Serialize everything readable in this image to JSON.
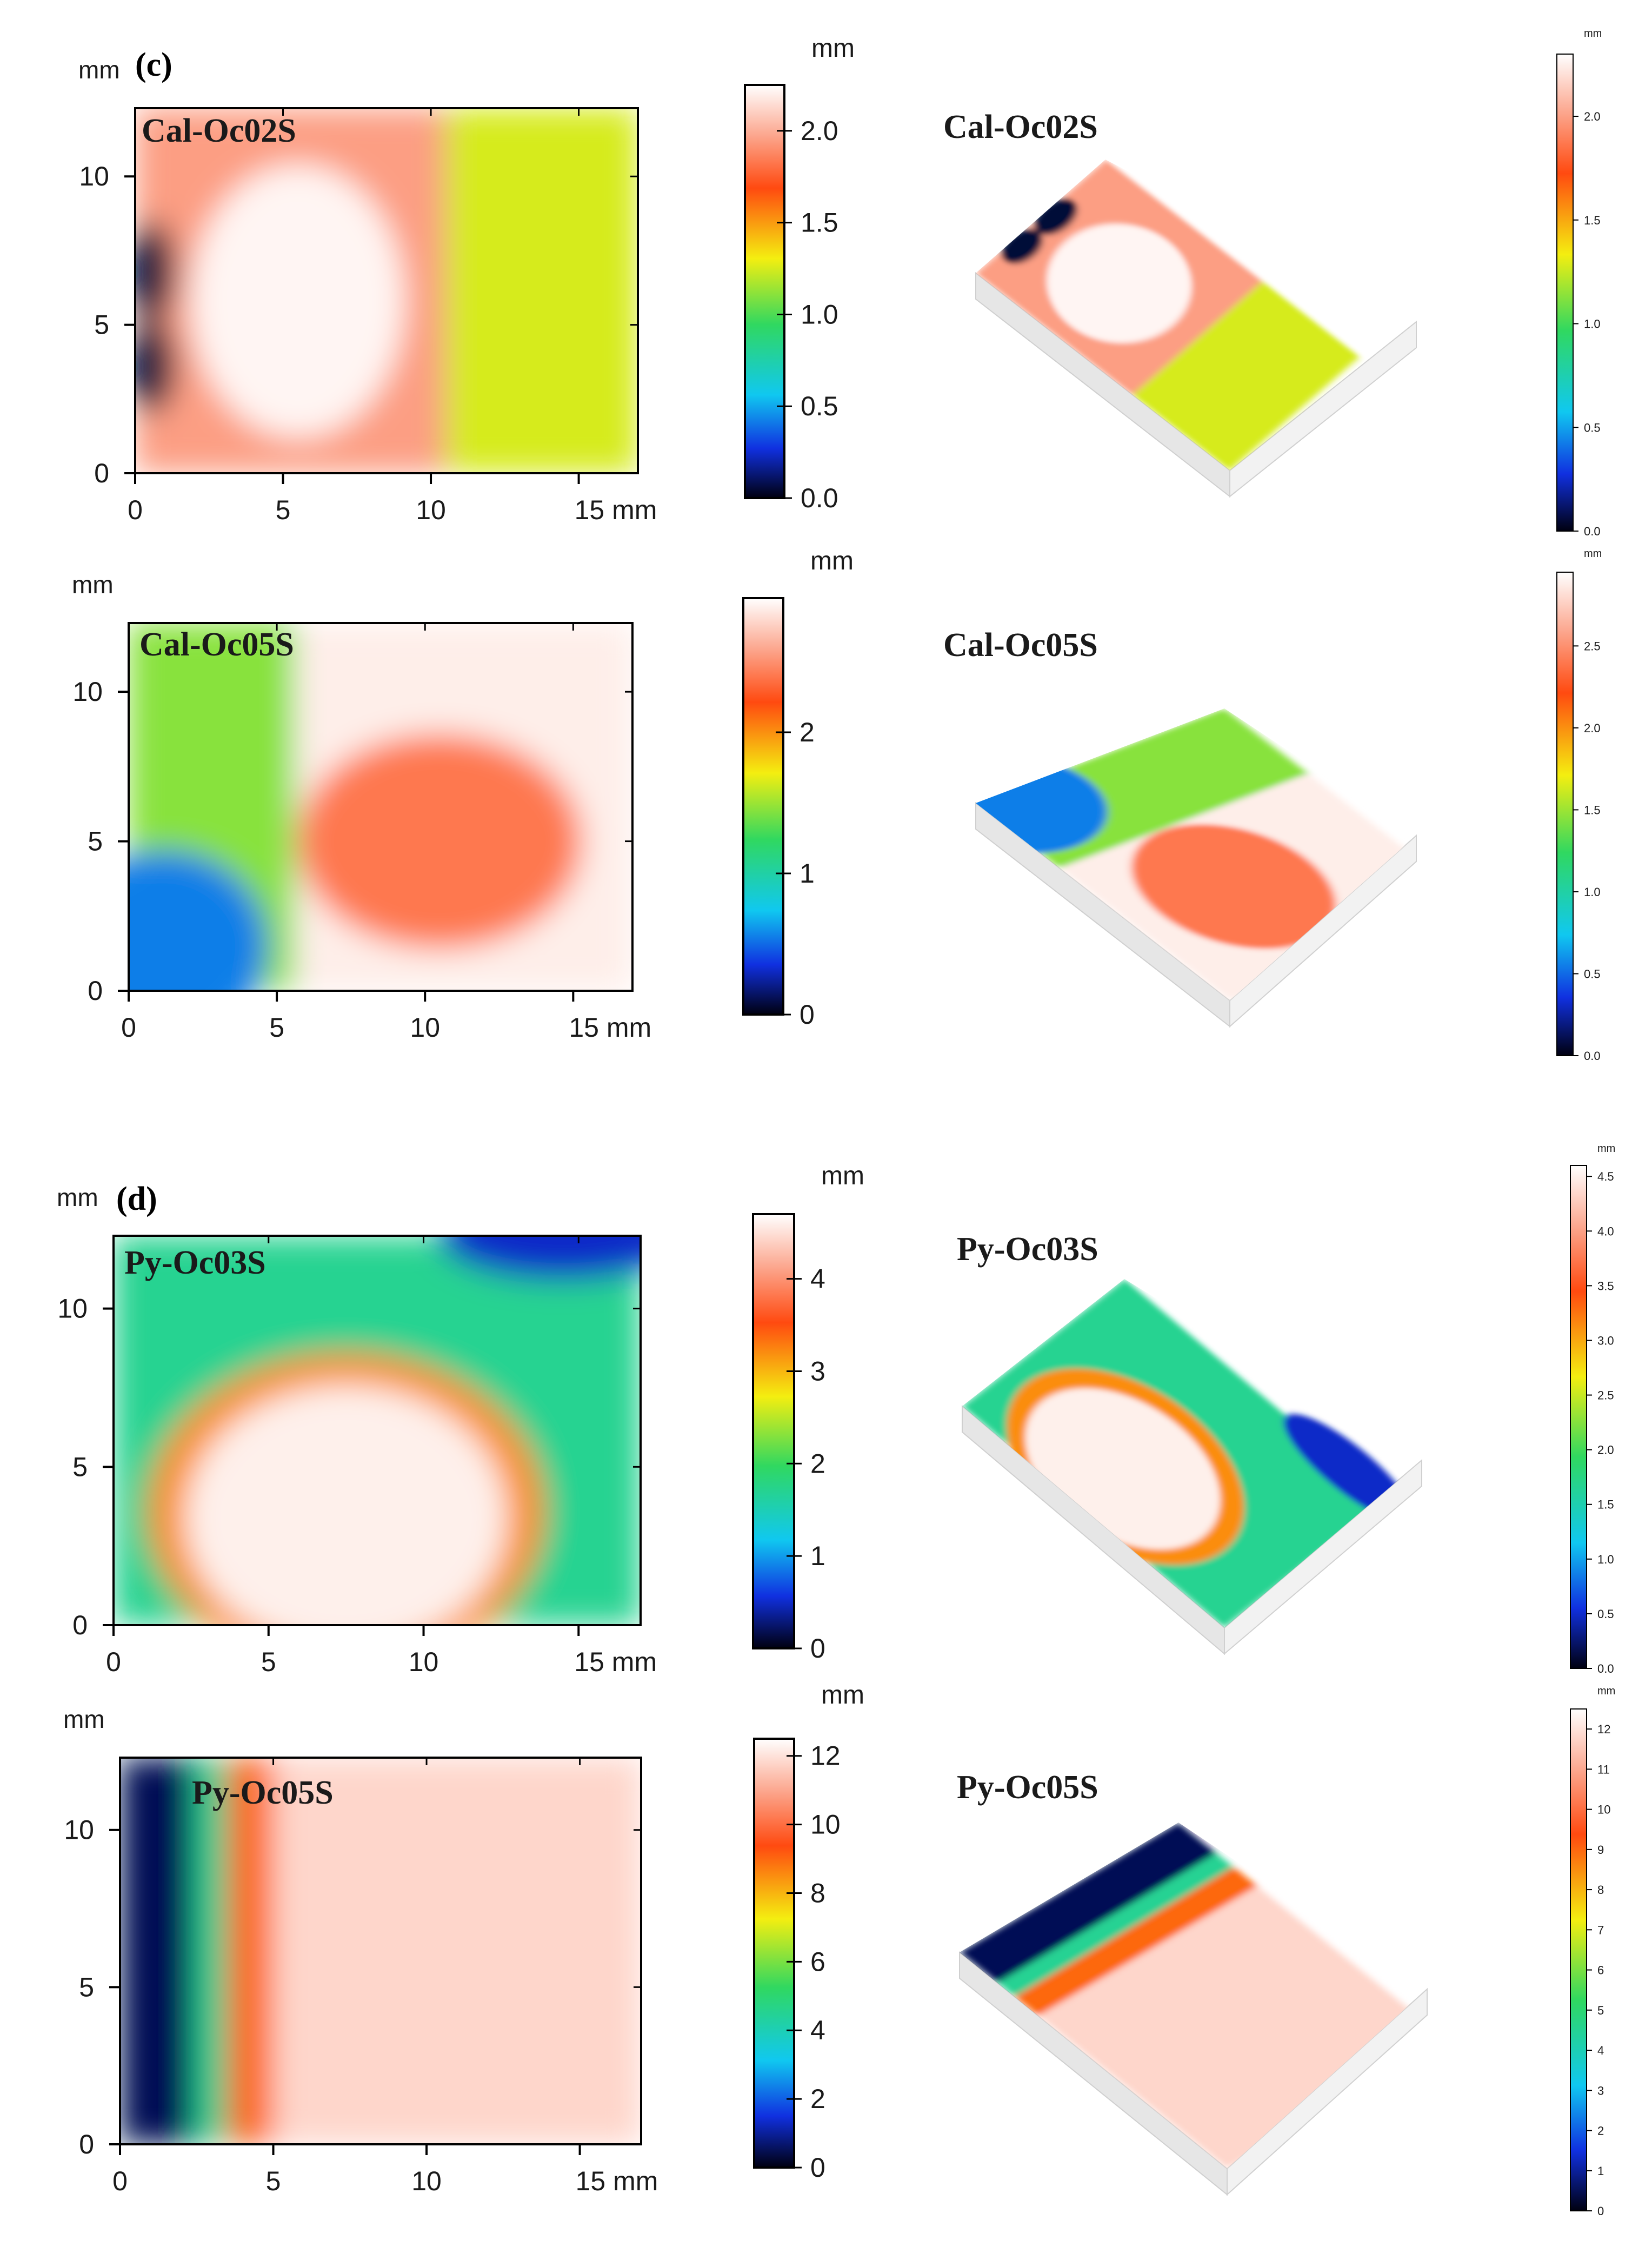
{
  "figure": {
    "panel_c_label": "(c)",
    "panel_d_label": "(d)"
  },
  "chart_data": [
    {
      "type": "heatmap",
      "panel": "(c)",
      "title": "Cal-Oc02S",
      "axis_unit_label": "mm",
      "xlim": [
        0,
        17
      ],
      "ylim": [
        0,
        12.3
      ],
      "x_ticks": [
        0,
        5,
        10,
        15
      ],
      "x_tick_labels": [
        "0",
        "5",
        "10",
        "15 mm"
      ],
      "y_ticks": [
        0,
        5,
        10
      ],
      "y_tick_labels": [
        "0",
        "5",
        "10"
      ],
      "colorbar": {
        "unit": "mm",
        "range": [
          0,
          2.25
        ],
        "ticks": [
          0.0,
          0.5,
          1.0,
          1.5,
          2.0
        ],
        "tick_labels": [
          "0.0",
          "0.5",
          "1.0",
          "1.5",
          "2.0"
        ]
      },
      "view3d": {
        "title": "Cal-Oc02S",
        "unit": "mm",
        "range": [
          0,
          2.3
        ],
        "ticks": [
          0.0,
          0.5,
          1.0,
          1.5,
          2.0
        ],
        "tick_labels": [
          "0.0",
          "0.5",
          "1.0",
          "1.5",
          "2.0"
        ]
      },
      "height_regions": [
        {
          "shape": "rect",
          "x": [
            10.5,
            17
          ],
          "y": [
            0,
            12.3
          ],
          "value": 1.25
        },
        {
          "shape": "rect",
          "x": [
            0,
            10.5
          ],
          "y": [
            0,
            12.3
          ],
          "value": 1.95
        },
        {
          "shape": "ellipse",
          "cx": 5.5,
          "cy": 5.8,
          "rx": 3.6,
          "ry": 4.6,
          "value": 2.22
        },
        {
          "shape": "ellipse",
          "cx": 0.55,
          "cy": 6.8,
          "rx": 0.8,
          "ry": 1.7,
          "value": 0.05
        },
        {
          "shape": "ellipse",
          "cx": 0.55,
          "cy": 3.6,
          "rx": 0.8,
          "ry": 1.6,
          "value": 0.05
        }
      ]
    },
    {
      "type": "heatmap",
      "panel": "(c)",
      "title": "Cal-Oc05S",
      "axis_unit_label": "mm",
      "xlim": [
        0,
        17
      ],
      "ylim": [
        0,
        12.3
      ],
      "x_ticks": [
        0,
        5,
        10,
        15
      ],
      "x_tick_labels": [
        "0",
        "5",
        "10",
        "15 mm"
      ],
      "y_ticks": [
        0,
        5,
        10
      ],
      "y_tick_labels": [
        "0",
        "5",
        "10"
      ],
      "colorbar": {
        "unit": "mm",
        "range": [
          0,
          2.95
        ],
        "ticks": [
          0,
          1,
          2
        ],
        "tick_labels": [
          "0",
          "1",
          "2"
        ]
      },
      "view3d": {
        "title": "Cal-Oc05S",
        "unit": "mm",
        "range": [
          0,
          2.95
        ],
        "ticks": [
          0.0,
          0.5,
          1.0,
          1.5,
          2.0,
          2.5
        ],
        "tick_labels": [
          "0.0",
          "0.5",
          "1.0",
          "1.5",
          "2.0",
          "2.5"
        ]
      },
      "height_regions": [
        {
          "shape": "rect",
          "x": [
            0,
            5.6
          ],
          "y": [
            0,
            12.3
          ],
          "value": 1.45
        },
        {
          "shape": "ellipse",
          "cx": 1.2,
          "cy": 1.5,
          "rx": 3.5,
          "ry": 3.2,
          "value": 0.55
        },
        {
          "shape": "rect",
          "x": [
            5.6,
            17
          ],
          "y": [
            0,
            12.3
          ],
          "value": 2.88
        },
        {
          "shape": "ellipse",
          "cx": 10.5,
          "cy": 5.0,
          "rx": 4.8,
          "ry": 3.6,
          "value": 2.4
        }
      ]
    },
    {
      "type": "heatmap",
      "panel": "(d)",
      "title": "Py-Oc03S",
      "axis_unit_label": "mm",
      "xlim": [
        0,
        17
      ],
      "ylim": [
        0,
        12.3
      ],
      "x_ticks": [
        0,
        5,
        10,
        15
      ],
      "x_tick_labels": [
        "0",
        "5",
        "10",
        "15 mm"
      ],
      "y_ticks": [
        0,
        5,
        10
      ],
      "y_tick_labels": [
        "0",
        "5",
        "10"
      ],
      "colorbar": {
        "unit": "mm",
        "range": [
          0,
          4.7
        ],
        "ticks": [
          0,
          1,
          2,
          3,
          4
        ],
        "tick_labels": [
          "0",
          "1",
          "2",
          "3",
          "4"
        ]
      },
      "view3d": {
        "title": "Py-Oc03S",
        "unit": "mm",
        "range": [
          0,
          4.6
        ],
        "ticks": [
          0.0,
          0.5,
          1.0,
          1.5,
          2.0,
          2.5,
          3.0,
          3.5,
          4.0,
          4.5
        ],
        "tick_labels": [
          "0.0",
          "0.5",
          "1.0",
          "1.5",
          "2.0",
          "2.5",
          "3.0",
          "3.5",
          "4.0",
          "4.5"
        ]
      },
      "height_regions": [
        {
          "shape": "rect",
          "x": [
            0,
            17
          ],
          "y": [
            0,
            12.3
          ],
          "value": 1.7
        },
        {
          "shape": "ellipse",
          "cx": 14.5,
          "cy": 12.3,
          "rx": 4.0,
          "ry": 1.4,
          "value": 0.5
        },
        {
          "shape": "ellipse",
          "cx": 7.5,
          "cy": 3.6,
          "rx": 6.4,
          "ry": 5.0,
          "value": 3.2
        },
        {
          "shape": "ellipse",
          "cx": 7.5,
          "cy": 3.4,
          "rx": 5.2,
          "ry": 4.2,
          "value": 4.6
        }
      ]
    },
    {
      "type": "heatmap",
      "panel": "(d)",
      "title": "Py-Oc05S",
      "axis_unit_label": "mm",
      "xlim": [
        0,
        17
      ],
      "ylim": [
        0,
        12.3
      ],
      "x_ticks": [
        0,
        5,
        10,
        15
      ],
      "x_tick_labels": [
        "0",
        "5",
        "10",
        "15 mm"
      ],
      "y_ticks": [
        0,
        5,
        10
      ],
      "y_tick_labels": [
        "0",
        "5",
        "10"
      ],
      "colorbar": {
        "unit": "mm",
        "range": [
          0,
          12.5
        ],
        "ticks": [
          0,
          2,
          4,
          6,
          8,
          10,
          12
        ],
        "tick_labels": [
          "0",
          "2",
          "4",
          "6",
          "8",
          "10",
          "12"
        ]
      },
      "view3d": {
        "title": "Py-Oc05S",
        "unit": "mm",
        "range": [
          0,
          12.5
        ],
        "ticks": [
          0,
          1,
          2,
          3,
          4,
          5,
          6,
          7,
          8,
          9,
          10,
          11,
          12
        ],
        "tick_labels": [
          "0",
          "1",
          "2",
          "3",
          "4",
          "5",
          "6",
          "7",
          "8",
          "9",
          "10",
          "11",
          "12"
        ]
      },
      "height_regions": [
        {
          "shape": "rect",
          "x": [
            0,
            2.4
          ],
          "y": [
            0,
            12.3
          ],
          "value": 0.5
        },
        {
          "shape": "rect",
          "x": [
            2.4,
            3.5
          ],
          "y": [
            0,
            12.3
          ],
          "value": 4.5
        },
        {
          "shape": "rect",
          "x": [
            3.5,
            5.0
          ],
          "y": [
            0,
            12.3
          ],
          "value": 9.0
        },
        {
          "shape": "rect",
          "x": [
            5.0,
            17
          ],
          "y": [
            0,
            12.3
          ],
          "value": 11.8
        }
      ]
    }
  ]
}
